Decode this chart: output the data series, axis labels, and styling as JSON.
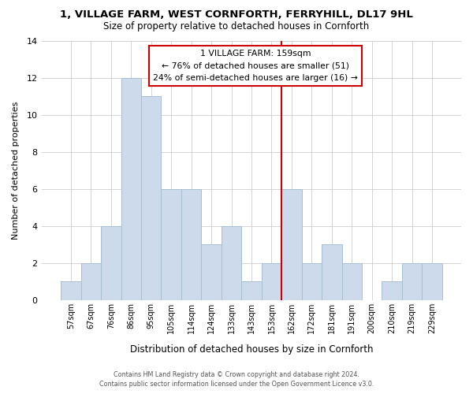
{
  "title": "1, VILLAGE FARM, WEST CORNFORTH, FERRYHILL, DL17 9HL",
  "subtitle": "Size of property relative to detached houses in Cornforth",
  "xlabel": "Distribution of detached houses by size in Cornforth",
  "ylabel": "Number of detached properties",
  "bar_values": [
    1,
    2,
    4,
    12,
    11,
    6,
    6,
    3,
    4,
    1,
    2,
    6,
    2,
    3,
    2,
    0,
    1,
    2,
    2
  ],
  "bar_labels": [
    "57sqm",
    "67sqm",
    "76sqm",
    "86sqm",
    "95sqm",
    "105sqm",
    "114sqm",
    "124sqm",
    "133sqm",
    "143sqm",
    "153sqm",
    "162sqm",
    "172sqm",
    "181sqm",
    "191sqm",
    "200sqm",
    "210sqm",
    "219sqm",
    "229sqm"
  ],
  "bar_color": "#ccdaeb",
  "bar_edge_color": "#a8bfd4",
  "ref_line_index": 11,
  "reference_line_color": "#cc0000",
  "ylim": [
    0,
    14
  ],
  "yticks": [
    0,
    2,
    4,
    6,
    8,
    10,
    12,
    14
  ],
  "annotation_title": "1 VILLAGE FARM: 159sqm",
  "annotation_line1": "← 76% of detached houses are smaller (51)",
  "annotation_line2": "24% of semi-detached houses are larger (16) →",
  "annotation_box_color": "#ffffff",
  "annotation_box_edge": "#cc0000",
  "footer_line1": "Contains HM Land Registry data © Crown copyright and database right 2024.",
  "footer_line2": "Contains public sector information licensed under the Open Government Licence v3.0.",
  "bg_color": "#ffffff",
  "grid_color": "#cccccc"
}
